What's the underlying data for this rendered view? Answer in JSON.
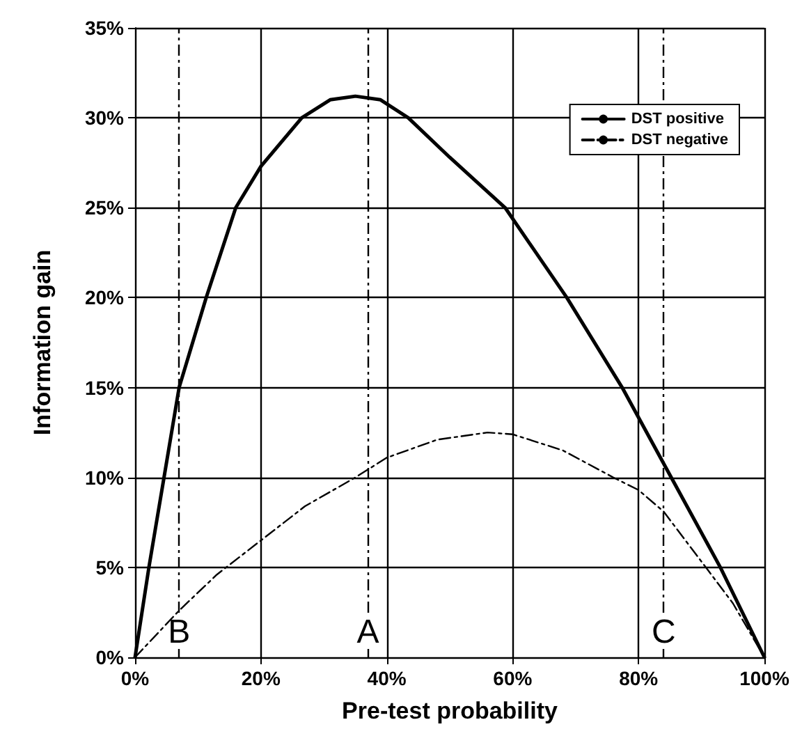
{
  "chart_data": {
    "type": "line",
    "xlabel": "Pre-test probability",
    "ylabel": "Information gain",
    "xlim": [
      0,
      100
    ],
    "xticks": [
      {
        "value": 0,
        "label": "0%"
      },
      {
        "value": 20,
        "label": "20%"
      },
      {
        "value": 40,
        "label": "40%"
      },
      {
        "value": 60,
        "label": "60%"
      },
      {
        "value": 80,
        "label": "80%"
      },
      {
        "value": 100,
        "label": "100%"
      }
    ],
    "ylim": [
      0,
      35
    ],
    "yticks": [
      {
        "value": 0,
        "label": "0%"
      },
      {
        "value": 5,
        "label": "5%"
      },
      {
        "value": 10,
        "label": "10%"
      },
      {
        "value": 15,
        "label": "15%"
      },
      {
        "value": 20,
        "label": "20%"
      },
      {
        "value": 25,
        "label": "25%"
      },
      {
        "value": 30,
        "label": "30%"
      },
      {
        "value": 35,
        "label": "35%"
      }
    ],
    "grid": true,
    "legend": "top right",
    "marker": "none",
    "series": [
      {
        "name": "DST positive",
        "color": "#000000",
        "line_style": "solid",
        "x": [
          0,
          2.2,
          4.6,
          7,
          11.3,
          16,
          20,
          26.5,
          31,
          35,
          39,
          43.4,
          50,
          58.8,
          68.6,
          77.4,
          85.2,
          93,
          100
        ],
        "values": [
          0,
          5,
          10,
          15,
          20,
          25,
          27.3,
          30,
          31,
          31.2,
          31,
          30,
          27.8,
          25,
          20,
          15,
          10,
          5,
          0
        ]
      },
      {
        "name": "DST negative",
        "color": "#000000",
        "line_style": "dashed",
        "x": [
          0,
          7,
          13,
          20,
          27,
          35,
          40,
          48,
          56,
          60,
          68,
          76,
          80,
          84,
          90.7,
          95,
          100
        ],
        "values": [
          0,
          2.6,
          4.6,
          6.5,
          8.4,
          10,
          11.1,
          12.1,
          12.5,
          12.4,
          11.5,
          10,
          9.3,
          8.1,
          5,
          3,
          0
        ]
      }
    ],
    "ref_lines": [
      {
        "axis": "x",
        "value": 7,
        "label": "B",
        "line_style": "dashed"
      },
      {
        "axis": "x",
        "value": 37,
        "label": "A",
        "line_style": "dashed"
      },
      {
        "axis": "x",
        "value": 84,
        "label": "C",
        "line_style": "dashed"
      }
    ]
  }
}
